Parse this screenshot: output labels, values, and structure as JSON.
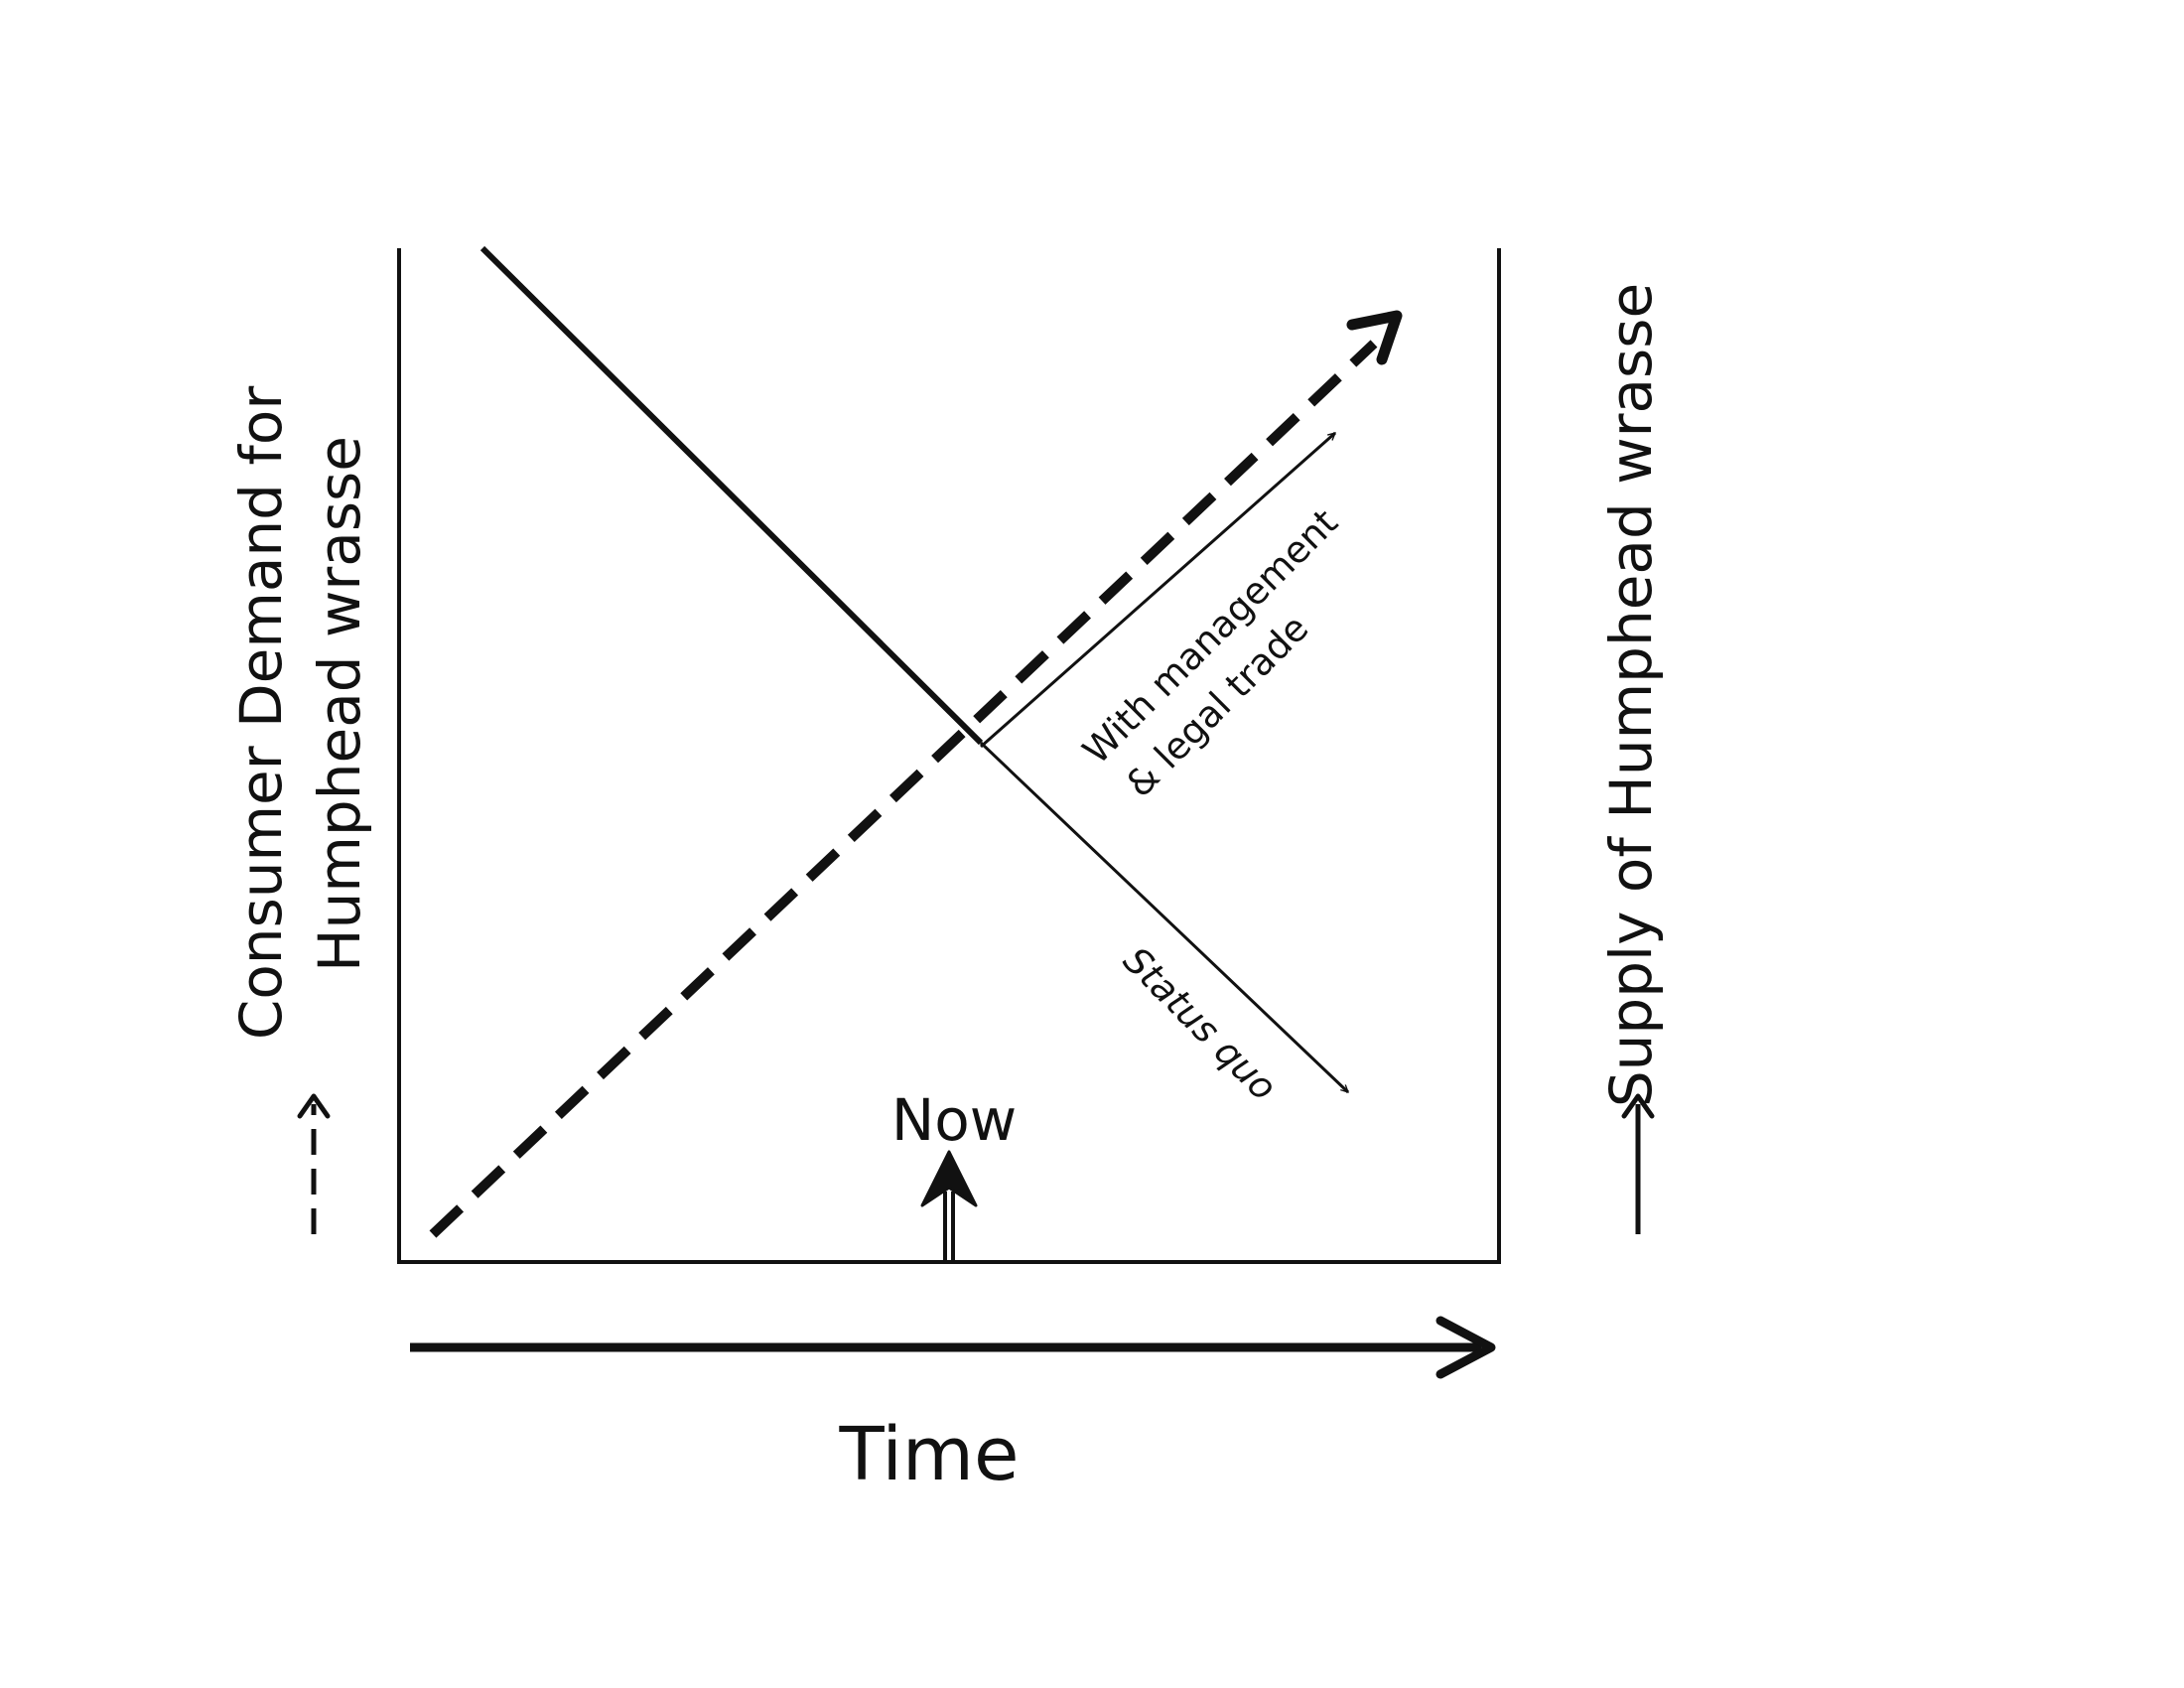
{
  "labels": {
    "demand_line1": "Consumer Demand for",
    "demand_line2": "Humphead wrasse",
    "supply": "Supply of Humphead wrasse",
    "time": "Time",
    "now": "Now",
    "managed_line1": "With management",
    "managed_line2": "& legal trade",
    "status_quo": "Status quo"
  },
  "legend": {
    "demand_style": "dashed",
    "supply_style": "solid"
  },
  "colors": {
    "ink": "#111111",
    "background": "#ffffff"
  }
}
